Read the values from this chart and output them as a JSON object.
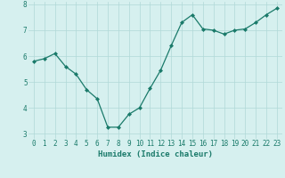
{
  "x": [
    0,
    1,
    2,
    3,
    4,
    5,
    6,
    7,
    8,
    9,
    10,
    11,
    12,
    13,
    14,
    15,
    16,
    17,
    18,
    19,
    20,
    21,
    22,
    23
  ],
  "y": [
    5.8,
    5.9,
    6.1,
    5.6,
    5.3,
    4.7,
    4.35,
    3.25,
    3.25,
    3.75,
    4.0,
    4.75,
    5.45,
    6.4,
    7.3,
    7.6,
    7.05,
    7.0,
    6.85,
    7.0,
    7.05,
    7.3,
    7.6,
    7.85
  ],
  "line_color": "#1a7a6a",
  "marker": "D",
  "marker_size": 2.0,
  "bg_color": "#d6f0ef",
  "grid_color": "#b0d8d8",
  "xlabel": "Humidex (Indice chaleur)",
  "ylabel": "",
  "title": "",
  "ylim": [
    2.8,
    8.1
  ],
  "xlim": [
    -0.5,
    23.5
  ],
  "yticks": [
    3,
    4,
    5,
    6,
    7,
    8
  ],
  "xticks": [
    0,
    1,
    2,
    3,
    4,
    5,
    6,
    7,
    8,
    9,
    10,
    11,
    12,
    13,
    14,
    15,
    16,
    17,
    18,
    19,
    20,
    21,
    22,
    23
  ],
  "tick_fontsize": 5.5,
  "label_fontsize": 6.5,
  "linewidth": 0.9
}
